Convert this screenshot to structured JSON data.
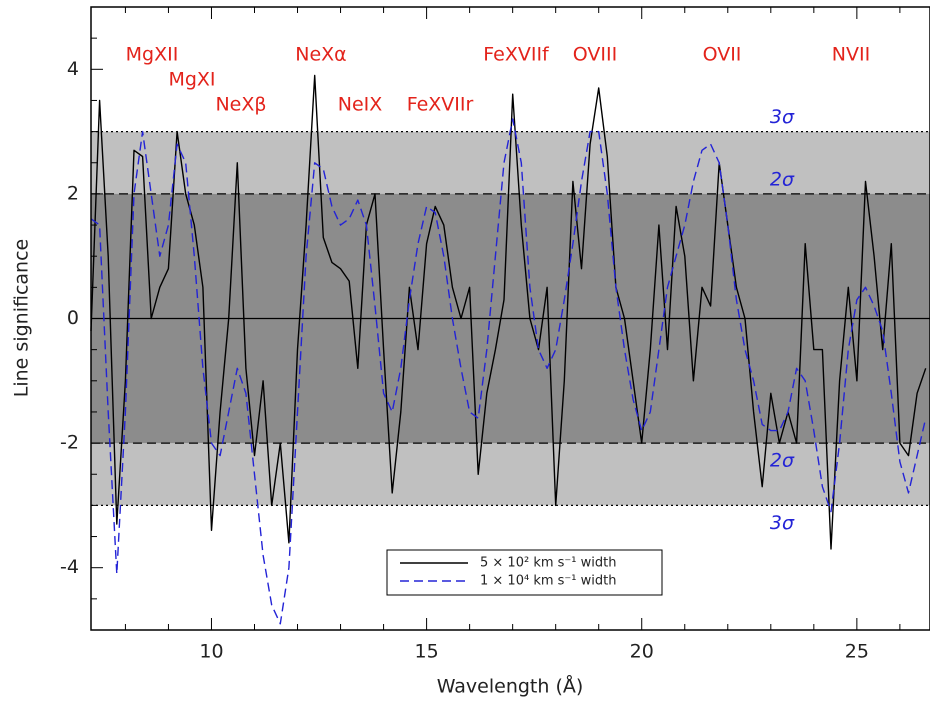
{
  "chart_data": {
    "type": "line",
    "xlabel": "Wavelength (Å)",
    "ylabel": "Line significance",
    "xlim": [
      7.2,
      26.7
    ],
    "ylim": [
      -5,
      5
    ],
    "xticks": [
      10,
      15,
      20,
      25
    ],
    "yticks": [
      -4,
      -2,
      0,
      2,
      4
    ],
    "xminorticks": [
      8,
      9,
      11,
      12,
      13,
      14,
      16,
      17,
      18,
      19,
      21,
      22,
      23,
      24,
      26
    ],
    "yminorticks": [
      -4.5,
      -3.5,
      -3,
      -2.5,
      -1.5,
      -1,
      -0.5,
      0.5,
      1,
      1.5,
      2.5,
      3,
      3.5,
      4.5
    ],
    "bands": [
      {
        "lower": -3,
        "upper": 3,
        "color": "#c0c0c0"
      },
      {
        "lower": -2,
        "upper": 2,
        "color": "#8c8c8c"
      }
    ],
    "hlines": [
      {
        "value": 0,
        "style": "solid"
      },
      {
        "value": 2,
        "style": "dashed"
      },
      {
        "value": -2,
        "style": "dashed"
      },
      {
        "value": 3,
        "style": "dotted"
      },
      {
        "value": -3,
        "style": "dotted"
      }
    ],
    "sigma_labels": [
      {
        "text": "3σ",
        "value": 3
      },
      {
        "text": "2σ",
        "value": 2
      },
      {
        "text": "2σ",
        "value": -2
      },
      {
        "text": "3σ",
        "value": -3
      }
    ],
    "annotations": [
      "MgXII",
      "MgXI",
      "NeXβ",
      "NeXα",
      "NeIX",
      "FeXVIIr",
      "FeXVIIf",
      "OVIII",
      "OVII",
      "NVII"
    ],
    "x": [
      7.2,
      7.4,
      7.6,
      7.8,
      8.0,
      8.2,
      8.4,
      8.6,
      8.8,
      9.0,
      9.2,
      9.4,
      9.6,
      9.8,
      10.0,
      10.2,
      10.4,
      10.6,
      10.8,
      11.0,
      11.2,
      11.4,
      11.6,
      11.8,
      12.0,
      12.2,
      12.4,
      12.6,
      12.8,
      13.0,
      13.2,
      13.4,
      13.6,
      13.8,
      14.0,
      14.2,
      14.4,
      14.6,
      14.8,
      15.0,
      15.2,
      15.4,
      15.6,
      15.8,
      16.0,
      16.2,
      16.4,
      16.6,
      16.8,
      17.0,
      17.2,
      17.4,
      17.6,
      17.8,
      18.0,
      18.2,
      18.4,
      18.6,
      18.8,
      19.0,
      19.2,
      19.4,
      19.6,
      19.8,
      20.0,
      20.2,
      20.4,
      20.6,
      20.8,
      21.0,
      21.2,
      21.4,
      21.6,
      21.8,
      22.0,
      22.2,
      22.4,
      22.6,
      22.8,
      23.0,
      23.2,
      23.4,
      23.6,
      23.8,
      24.0,
      24.2,
      24.4,
      24.6,
      24.8,
      25.0,
      25.2,
      25.4,
      25.6,
      25.8,
      26.0,
      26.2,
      26.4,
      26.6
    ],
    "series": [
      {
        "name": "5 × 10² km s⁻¹ width",
        "color": "#000000",
        "dash": "solid",
        "values": [
          -0.2,
          3.5,
          1.0,
          -3.3,
          -1.0,
          2.7,
          2.6,
          0.0,
          0.5,
          0.8,
          3.0,
          2.0,
          1.5,
          0.5,
          -3.4,
          -1.5,
          0.0,
          2.5,
          -0.8,
          -2.2,
          -1.0,
          -3.0,
          -2.0,
          -3.6,
          -0.5,
          1.5,
          3.9,
          1.3,
          0.9,
          0.8,
          0.6,
          -0.8,
          1.5,
          2.0,
          -0.5,
          -2.8,
          -1.5,
          0.5,
          -0.5,
          1.2,
          1.8,
          1.5,
          0.5,
          0.0,
          0.5,
          -2.5,
          -1.2,
          -0.5,
          0.3,
          3.6,
          1.5,
          0.0,
          -0.5,
          0.5,
          -3.0,
          -1.0,
          2.2,
          0.8,
          2.8,
          3.7,
          2.6,
          0.5,
          0.0,
          -1.0,
          -2.0,
          -0.5,
          1.5,
          -0.5,
          1.8,
          1.0,
          -1.0,
          0.5,
          0.2,
          2.5,
          1.5,
          0.5,
          0.0,
          -1.5,
          -2.7,
          -1.2,
          -2.0,
          -1.5,
          -2.0,
          1.2,
          -0.5,
          -0.5,
          -3.7,
          -1.0,
          0.5,
          -1.0,
          2.2,
          1.0,
          -0.5,
          1.2,
          -2.0,
          -2.2,
          -1.2,
          -0.8
        ]
      },
      {
        "name": "1 × 10⁴ km s⁻¹ width",
        "color": "#2323d6",
        "dash": "dashed",
        "values": [
          1.6,
          1.5,
          -1.5,
          -4.1,
          -1.5,
          2.0,
          3.0,
          2.0,
          1.0,
          1.5,
          2.8,
          2.5,
          1.0,
          -0.8,
          -2.0,
          -2.2,
          -1.5,
          -0.8,
          -1.2,
          -2.5,
          -3.8,
          -4.6,
          -4.9,
          -4.0,
          -1.5,
          1.0,
          2.5,
          2.4,
          1.8,
          1.5,
          1.6,
          1.9,
          1.5,
          0.2,
          -1.2,
          -1.5,
          -0.8,
          0.3,
          1.2,
          1.8,
          1.7,
          1.0,
          0.0,
          -0.8,
          -1.5,
          -1.6,
          -0.5,
          1.0,
          2.5,
          3.2,
          2.5,
          0.5,
          -0.5,
          -0.8,
          -0.5,
          0.3,
          1.2,
          2.2,
          3.0,
          3.0,
          2.0,
          0.5,
          -0.5,
          -1.3,
          -1.8,
          -1.5,
          -0.5,
          0.5,
          1.0,
          1.5,
          2.2,
          2.7,
          2.8,
          2.5,
          1.5,
          0.3,
          -0.5,
          -1.0,
          -1.7,
          -1.8,
          -1.8,
          -1.5,
          -0.8,
          -1.0,
          -1.8,
          -2.7,
          -3.1,
          -2.0,
          -0.5,
          0.3,
          0.5,
          0.2,
          -0.2,
          -1.2,
          -2.3,
          -2.8,
          -2.2,
          -1.6
        ]
      }
    ]
  }
}
